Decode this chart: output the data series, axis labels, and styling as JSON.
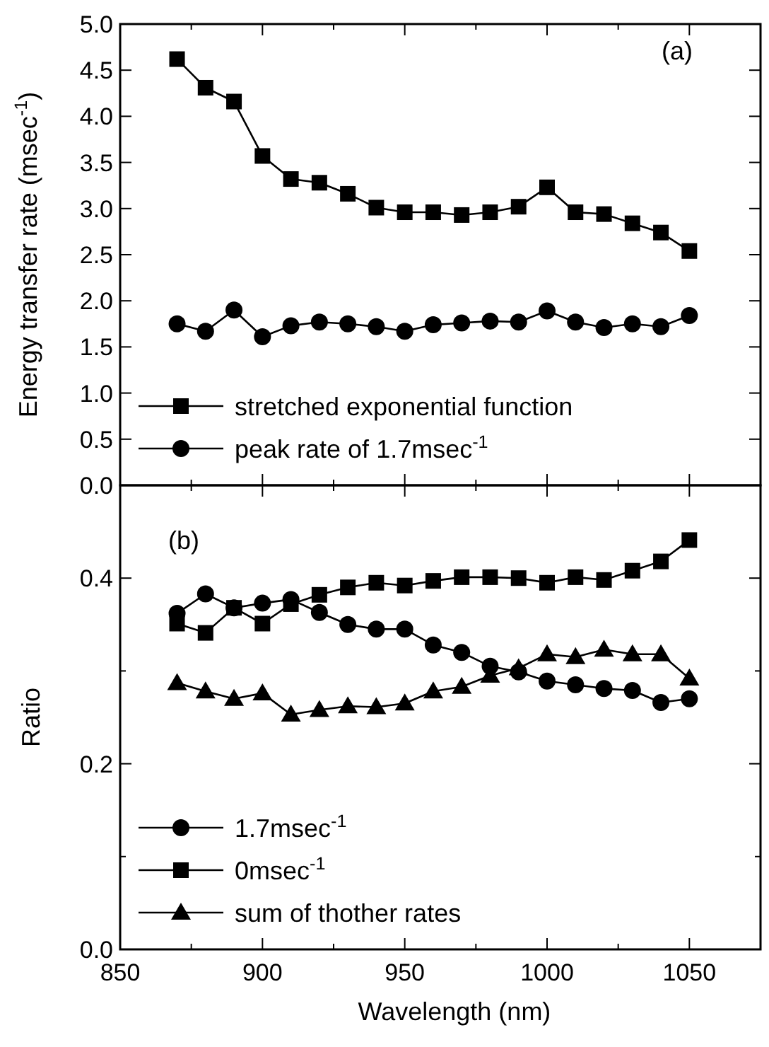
{
  "chart_data": [
    {
      "type": "line",
      "ylabel": "Energy transfer rate (msec$^{-1}$)",
      "x": [
        870,
        880,
        890,
        900,
        910,
        920,
        930,
        940,
        950,
        960,
        970,
        980,
        990,
        1000,
        1010,
        1020,
        1030,
        1040,
        1050
      ],
      "xlim": [
        850,
        1075
      ],
      "xticks": [
        {
          "value": 850,
          "label": null
        },
        {
          "value": 875,
          "label": null
        },
        {
          "value": 900,
          "label": null
        },
        {
          "value": 925,
          "label": null
        },
        {
          "value": 950,
          "label": null
        },
        {
          "value": 975,
          "label": null
        },
        {
          "value": 1000,
          "label": null
        },
        {
          "value": 1025,
          "label": null
        },
        {
          "value": 1050,
          "label": null
        }
      ],
      "ylim": [
        0,
        5
      ],
      "yticks": [
        {
          "value": 0,
          "label": "0.0"
        },
        {
          "value": 0.5,
          "label": "0.5"
        },
        {
          "value": 1,
          "label": "1.0"
        },
        {
          "value": 1.5,
          "label": "1.5"
        },
        {
          "value": 2,
          "label": "2.0"
        },
        {
          "value": 2.5,
          "label": "2.5"
        },
        {
          "value": 3,
          "label": "3.0"
        },
        {
          "value": 3.5,
          "label": "3.5"
        },
        {
          "value": 4,
          "label": "4.0"
        },
        {
          "value": 4.5,
          "label": "4.5"
        },
        {
          "value": 5,
          "label": "5.0"
        }
      ],
      "tick_labels": "y",
      "legend": "bottom left",
      "line_style": "solid",
      "annotations": [
        "(a)"
      ],
      "series": [
        {
          "name": "stretched exponential function",
          "color": "#000000",
          "marker": "square",
          "values": [
            4.62,
            4.31,
            4.16,
            3.57,
            3.32,
            3.28,
            3.16,
            3.01,
            2.96,
            2.96,
            2.93,
            2.96,
            3.02,
            3.23,
            2.96,
            2.94,
            2.84,
            2.74,
            2.54
          ]
        },
        {
          "name": "peak rate of 1.7msec$^{-1}$",
          "color": "#000000",
          "marker": "circle",
          "values": [
            1.75,
            1.67,
            1.9,
            1.61,
            1.73,
            1.77,
            1.75,
            1.72,
            1.67,
            1.74,
            1.76,
            1.78,
            1.77,
            1.89,
            1.77,
            1.71,
            1.75,
            1.72,
            1.84
          ]
        }
      ]
    },
    {
      "type": "line",
      "ylabel": "Ratio",
      "xlabel": "Wavelength (nm)",
      "x": [
        870,
        880,
        890,
        900,
        910,
        920,
        930,
        940,
        950,
        960,
        970,
        980,
        990,
        1000,
        1010,
        1020,
        1030,
        1040,
        1050
      ],
      "xlim": [
        850,
        1075
      ],
      "xticks": [
        {
          "value": 850,
          "label": "850"
        },
        {
          "value": 875,
          "label": null
        },
        {
          "value": 900,
          "label": "900"
        },
        {
          "value": 925,
          "label": null
        },
        {
          "value": 950,
          "label": "950"
        },
        {
          "value": 975,
          "label": null
        },
        {
          "value": 1000,
          "label": "1000"
        },
        {
          "value": 1025,
          "label": null
        },
        {
          "value": 1050,
          "label": "1050"
        }
      ],
      "ylim": [
        0,
        0.5
      ],
      "yticks": [
        {
          "value": 0,
          "label": "0.0"
        },
        {
          "value": 0.1,
          "label": null
        },
        {
          "value": 0.2,
          "label": "0.2"
        },
        {
          "value": 0.3,
          "label": null
        },
        {
          "value": 0.4,
          "label": "0.4"
        }
      ],
      "legend": "bottom left",
      "line_style": "solid",
      "annotations": [
        "(b)"
      ],
      "series": [
        {
          "name": "1.7msec$^{-1}$",
          "color": "#000000",
          "marker": "circle",
          "values": [
            0.362,
            0.383,
            0.368,
            0.373,
            0.377,
            0.363,
            0.35,
            0.345,
            0.345,
            0.328,
            0.32,
            0.305,
            0.299,
            0.289,
            0.285,
            0.281,
            0.279,
            0.266,
            0.27
          ]
        },
        {
          "name": "0msec$^{-1}$",
          "color": "#000000",
          "marker": "square",
          "values": [
            0.351,
            0.341,
            0.368,
            0.351,
            0.372,
            0.382,
            0.39,
            0.395,
            0.392,
            0.397,
            0.401,
            0.401,
            0.4,
            0.395,
            0.401,
            0.398,
            0.408,
            0.418,
            0.441
          ]
        },
        {
          "name": "sum of thother rates",
          "color": "#000000",
          "marker": "triangle",
          "values": [
            0.287,
            0.278,
            0.27,
            0.276,
            0.253,
            0.258,
            0.262,
            0.261,
            0.265,
            0.278,
            0.283,
            0.295,
            0.303,
            0.318,
            0.315,
            0.323,
            0.318,
            0.318,
            0.292
          ]
        }
      ]
    }
  ]
}
